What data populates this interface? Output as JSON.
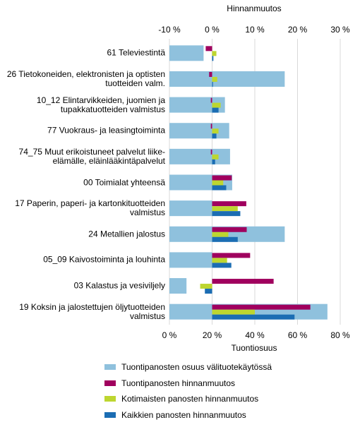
{
  "chart_data": {
    "type": "bar",
    "orientation": "horizontal",
    "x2_title": "Hinnanmuutos",
    "x_title": "Tuontiosuus",
    "categories": [
      "61 Televiestintä",
      "26 Tietokoneiden, elektronisten ja optisten\ntuotteiden valm.",
      "10_12 Elintarvikkeiden, juomien ja\ntupakkatuotteiden valmistus",
      "77 Vuokraus- ja leasingtoiminta",
      "74_75 Muut erikoistuneet palvelut liike-\nelämälle, eläinlääkintäpalvelut",
      "00 Toimialat yhteensä",
      "17 Paperin, paperi- ja kartonkituotteiden\nvalmistus",
      "24 Metallien jalostus",
      "05_09 Kaivostoiminta ja louhinta",
      "03 Kalastus ja vesiviljely",
      "19 Koksin ja jalostettujen öljytuotteiden\nvalmistus"
    ],
    "xlim": [
      0,
      80
    ],
    "xticks": [
      {
        "value": 0,
        "label": "0 %"
      },
      {
        "value": 20,
        "label": "20 %"
      },
      {
        "value": 40,
        "label": "40 %"
      },
      {
        "value": 60,
        "label": "60 %"
      },
      {
        "value": 80,
        "label": "80 %"
      }
    ],
    "x2lim": [
      -10,
      30
    ],
    "x2ticks": [
      {
        "value": -10,
        "label": "-10 %"
      },
      {
        "value": 0,
        "label": "0 %"
      },
      {
        "value": 10,
        "label": "10 %"
      },
      {
        "value": 20,
        "label": "20 %"
      },
      {
        "value": 30,
        "label": "30 %"
      }
    ],
    "grid": true,
    "series": [
      {
        "name": "Tuontipanosten osuus välituotekäytössä",
        "color": "#8fc1dd",
        "axis": "x",
        "values": [
          16,
          54,
          26,
          28,
          28.4,
          29.4,
          20,
          54,
          20,
          8,
          74
        ]
      },
      {
        "name": "Tuontipanosten hinnanmuutos",
        "color": "#a0005e",
        "axis": "x2",
        "values": [
          -1.5,
          -0.7,
          -0.3,
          -0.3,
          -0.3,
          4.6,
          8,
          8.1,
          8.9,
          14.4,
          23
        ]
      },
      {
        "name": "Kotimaisten panosten hinnanmuutos",
        "color": "#bdd630",
        "axis": "x2",
        "values": [
          1,
          1.2,
          2,
          1.5,
          1.5,
          2.6,
          6,
          3.8,
          3.5,
          -2.8,
          10
        ]
      },
      {
        "name": "Kaikkien panosten hinnanmuutos",
        "color": "#1b6db3",
        "axis": "x2",
        "values": [
          0.3,
          0.2,
          1.5,
          1,
          0.7,
          3.3,
          6.6,
          6,
          4.5,
          -1.7,
          19.3
        ]
      }
    ]
  }
}
